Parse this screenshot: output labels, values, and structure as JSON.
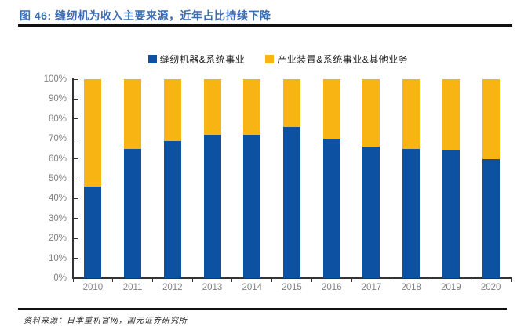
{
  "figure": {
    "title": "图 46: 缝纫机为收入主要来源，近年占比持续下降",
    "source_note": "资料来源：日本重机官网，国元证券研究所"
  },
  "colors": {
    "title_blue": "#3B6CB4",
    "series_blue": "#0D51A3",
    "series_yellow": "#F7B412",
    "axis_line": "#333333",
    "tick_label_gray": "#808080",
    "rule_black": "#111111"
  },
  "chart_data": {
    "type": "bar",
    "stacked": true,
    "title": "",
    "categories": [
      "2010",
      "2011",
      "2012",
      "2013",
      "2014",
      "2015",
      "2016",
      "2017",
      "2018",
      "2019",
      "2020"
    ],
    "series": [
      {
        "name": "缝纫机器&系统事业",
        "color": "#0D51A3",
        "values": [
          46,
          65,
          69,
          72,
          72,
          76,
          70,
          66,
          65,
          64,
          60
        ]
      },
      {
        "name": "产业装置&系统事业&其他业务",
        "color": "#F7B412",
        "values": [
          54,
          35,
          31,
          28,
          28,
          24,
          30,
          34,
          35,
          36,
          40
        ]
      }
    ],
    "xlabel": "",
    "ylabel": "",
    "ylim": [
      0,
      100
    ],
    "y_tick_step": 10,
    "y_tick_labels": [
      "0%",
      "10%",
      "20%",
      "30%",
      "40%",
      "50%",
      "60%",
      "70%",
      "80%",
      "90%",
      "100%"
    ],
    "grid": false,
    "legend_position": "top-center"
  }
}
